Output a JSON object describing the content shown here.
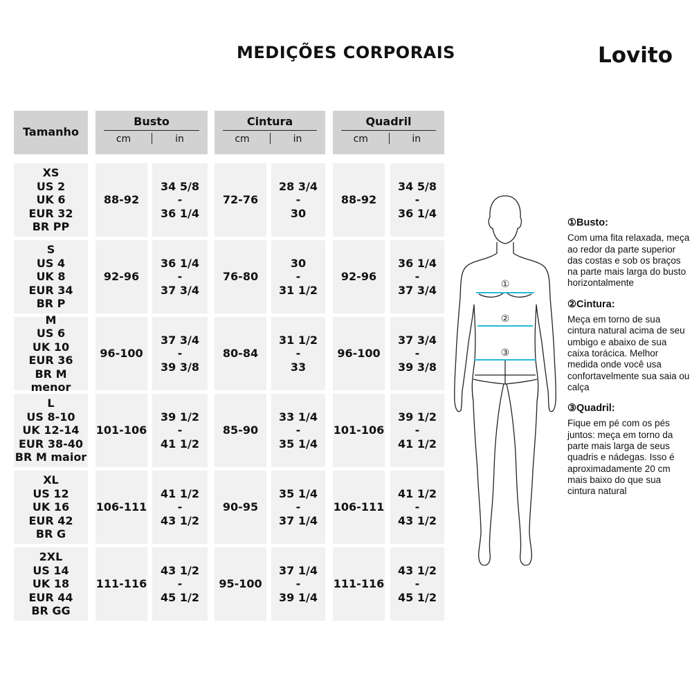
{
  "title": "MEDIÇÕES CORPORAIS",
  "logo": "Lovito",
  "header": {
    "size": "Tamanho",
    "groups": [
      {
        "name": "Busto",
        "cm": "cm",
        "in": "in"
      },
      {
        "name": "Cintura",
        "cm": "cm",
        "in": "in"
      },
      {
        "name": "Quadril",
        "cm": "cm",
        "in": "in"
      }
    ]
  },
  "rows": [
    {
      "size": "XS\nUS 2\nUK 6\nEUR 32\nBR PP",
      "bust_cm": "88-92",
      "bust_in": "34 5/8\n-\n36 1/4",
      "waist_cm": "72-76",
      "waist_in": "28 3/4\n-\n30",
      "hip_cm": "88-92",
      "hip_in": "34 5/8\n-\n36 1/4"
    },
    {
      "size": "S\nUS 4\nUK 8\nEUR 34\nBR P",
      "bust_cm": "92-96",
      "bust_in": "36 1/4\n-\n37 3/4",
      "waist_cm": "76-80",
      "waist_in": "30\n-\n31 1/2",
      "hip_cm": "92-96",
      "hip_in": "36 1/4\n-\n37 3/4"
    },
    {
      "size": "M\nUS 6\nUK 10\nEUR 36\nBR M menor",
      "bust_cm": "96-100",
      "bust_in": "37 3/4\n-\n39 3/8",
      "waist_cm": "80-84",
      "waist_in": "31 1/2\n-\n33",
      "hip_cm": "96-100",
      "hip_in": "37 3/4\n-\n39 3/8"
    },
    {
      "size": "L\nUS 8-10\nUK 12-14\nEUR 38-40\nBR M maior",
      "bust_cm": "101-106",
      "bust_in": "39 1/2\n-\n41 1/2",
      "waist_cm": "85-90",
      "waist_in": "33 1/4\n-\n35 1/4",
      "hip_cm": "101-106",
      "hip_in": "39 1/2\n-\n41 1/2"
    },
    {
      "size": "XL\nUS 12\nUK 16\nEUR 42\nBR G",
      "bust_cm": "106-111",
      "bust_in": "41 1/2\n-\n43 1/2",
      "waist_cm": "90-95",
      "waist_in": "35 1/4\n-\n37 1/4",
      "hip_cm": "106-111",
      "hip_in": "41 1/2\n-\n43 1/2"
    },
    {
      "size": "2XL\nUS 14\nUK 18\nEUR 44\nBR GG",
      "bust_cm": "111-116",
      "bust_in": "43 1/2\n-\n45 1/2",
      "waist_cm": "95-100",
      "waist_in": "37 1/4\n-\n39 1/4",
      "hip_cm": "111-116",
      "hip_in": "43 1/2\n-\n45 1/2"
    }
  ],
  "figure": {
    "markers": [
      "①",
      "②",
      "③"
    ],
    "line_color": "#29b8d8"
  },
  "guide": [
    {
      "heading": "①Busto:",
      "text": "Com uma fita relaxada, meça ao redor da parte superior das costas e sob os braços na parte mais larga do busto horizontalmente"
    },
    {
      "heading": "②Cintura:",
      "text": "Meça em torno de sua cintura natural acima de seu umbigo e abaixo de sua caixa torácica. Melhor medida onde você usa confortavelmente sua saia ou calça"
    },
    {
      "heading": "③Quadril:",
      "text": "Fique em pé com os pés juntos: meça em torno da parte mais larga de seus quadris e nádegas. Isso é aproximadamente 20 cm mais baixo do que sua cintura natural"
    }
  ]
}
